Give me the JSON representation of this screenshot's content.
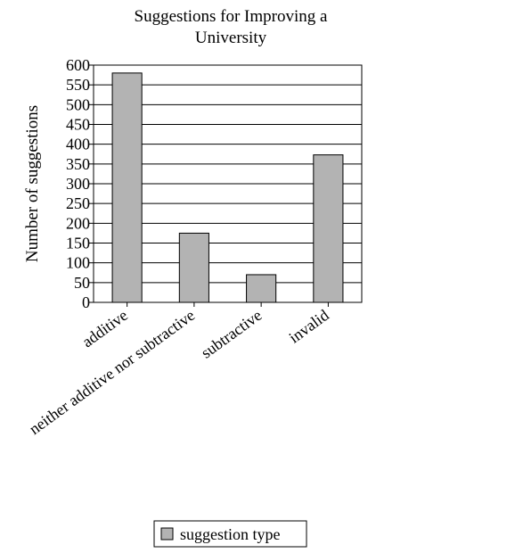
{
  "chart_data": {
    "type": "bar",
    "title": "Suggestions for Improving a University",
    "title_lines": [
      "Suggestions for Improving a",
      "University"
    ],
    "ylabel": "Number of suggestions",
    "xlabel": "",
    "categories": [
      "additive",
      "neither additive nor subtractive",
      "subtractive",
      "invalid"
    ],
    "series": [
      {
        "name": "suggestion type",
        "values": [
          580,
          175,
          70,
          373
        ]
      }
    ],
    "ylim": [
      0,
      600
    ],
    "yticks": [
      0,
      50,
      100,
      150,
      200,
      250,
      300,
      350,
      400,
      450,
      500,
      550,
      600
    ],
    "grid": true,
    "legend_position": "bottom-center",
    "bar_color": "#b3b3b3",
    "edge_color": "#000000"
  }
}
